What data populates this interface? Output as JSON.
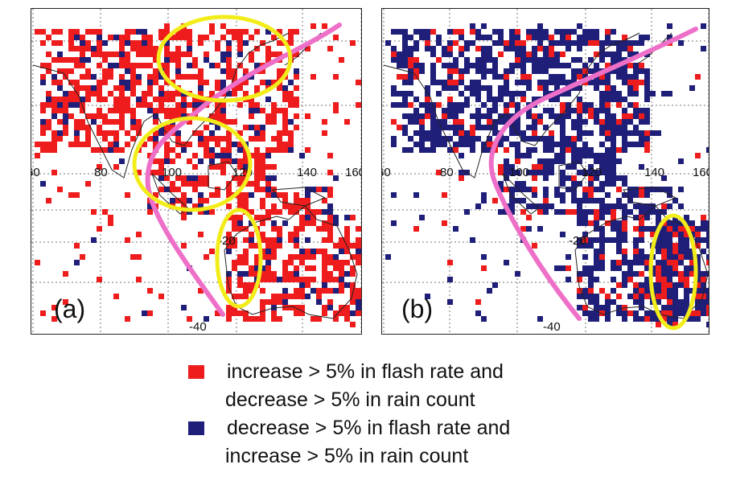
{
  "colors": {
    "increase_flash": "#ee1c1c",
    "decrease_flash": "#1f1f7a",
    "boundary_curve": "#ee6fc8",
    "highlight_ellipse": "#f2ec1a",
    "coast": "#222222"
  },
  "panels": [
    {
      "label": "(a)",
      "lon_ticks": [
        "60",
        "80",
        "100",
        "120",
        "140",
        "160"
      ],
      "lat_ticks": [
        "-20",
        "-40"
      ],
      "lon_range": [
        60,
        160
      ],
      "lat_range": [
        -45,
        50
      ],
      "dominant": "increase_flash",
      "ellipses": 3
    },
    {
      "label": "(b)",
      "lon_ticks": [
        "60",
        "80",
        "100",
        "120",
        "140",
        "160"
      ],
      "lat_ticks": [
        "-20",
        "-40"
      ],
      "lon_range": [
        60,
        160
      ],
      "lat_range": [
        -45,
        50
      ],
      "dominant": "decrease_flash",
      "ellipses": 1
    }
  ],
  "legend": [
    {
      "swatch": "increase_flash",
      "line1": "increase  > 5% in flash rate and",
      "line2": "decrease > 5% in rain count"
    },
    {
      "swatch": "decrease_flash",
      "line1": "decrease > 5% in flash rate and",
      "line2": "increase  > 5% in rain count"
    }
  ]
}
